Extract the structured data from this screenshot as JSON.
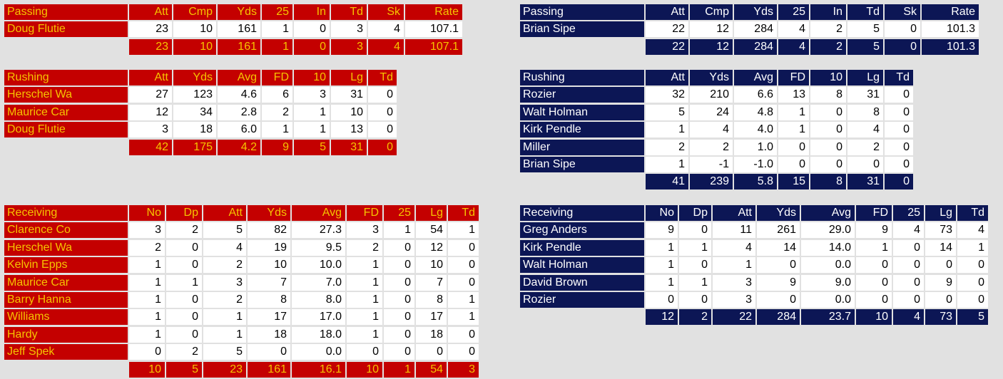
{
  "home": {
    "passing": {
      "title": "Passing",
      "columns": [
        "Att",
        "Cmp",
        "Yds",
        "25",
        "In",
        "Td",
        "Sk",
        "Rate"
      ],
      "rows": [
        {
          "name": "Doug Flutie",
          "values": [
            "23",
            "10",
            "161",
            "1",
            "0",
            "3",
            "4",
            "107.1"
          ]
        }
      ],
      "total": [
        "23",
        "10",
        "161",
        "1",
        "0",
        "3",
        "4",
        "107.1"
      ]
    },
    "rushing": {
      "title": "Rushing",
      "columns": [
        "Att",
        "Yds",
        "Avg",
        "FD",
        "10",
        "Lg",
        "Td"
      ],
      "rows": [
        {
          "name": "Herschel Wa",
          "values": [
            "27",
            "123",
            "4.6",
            "6",
            "3",
            "31",
            "0"
          ]
        },
        {
          "name": "Maurice Car",
          "values": [
            "12",
            "34",
            "2.8",
            "2",
            "1",
            "10",
            "0"
          ]
        },
        {
          "name": "Doug Flutie",
          "values": [
            "3",
            "18",
            "6.0",
            "1",
            "1",
            "13",
            "0"
          ]
        }
      ],
      "total": [
        "42",
        "175",
        "4.2",
        "9",
        "5",
        "31",
        "0"
      ]
    },
    "receiving": {
      "title": "Receiving",
      "columns": [
        "No",
        "Dp",
        "Att",
        "Yds",
        "Avg",
        "FD",
        "25",
        "Lg",
        "Td"
      ],
      "rows": [
        {
          "name": "Clarence Co",
          "values": [
            "3",
            "2",
            "5",
            "82",
            "27.3",
            "3",
            "1",
            "54",
            "1"
          ]
        },
        {
          "name": "Herschel Wa",
          "values": [
            "2",
            "0",
            "4",
            "19",
            "9.5",
            "2",
            "0",
            "12",
            "0"
          ]
        },
        {
          "name": "Kelvin Epps",
          "values": [
            "1",
            "0",
            "2",
            "10",
            "10.0",
            "1",
            "0",
            "10",
            "0"
          ]
        },
        {
          "name": "Maurice Car",
          "values": [
            "1",
            "1",
            "3",
            "7",
            "7.0",
            "1",
            "0",
            "7",
            "0"
          ]
        },
        {
          "name": "Barry Hanna",
          "values": [
            "1",
            "0",
            "2",
            "8",
            "8.0",
            "1",
            "0",
            "8",
            "1"
          ]
        },
        {
          "name": "Williams",
          "values": [
            "1",
            "0",
            "1",
            "17",
            "17.0",
            "1",
            "0",
            "17",
            "1"
          ]
        },
        {
          "name": "Hardy",
          "values": [
            "1",
            "0",
            "1",
            "18",
            "18.0",
            "1",
            "0",
            "18",
            "0"
          ]
        },
        {
          "name": "Jeff Spek",
          "values": [
            "0",
            "2",
            "5",
            "0",
            "0.0",
            "0",
            "0",
            "0",
            "0"
          ]
        }
      ],
      "total": [
        "10",
        "5",
        "23",
        "161",
        "16.1",
        "10",
        "1",
        "54",
        "3"
      ]
    }
  },
  "away": {
    "passing": {
      "title": "Passing",
      "columns": [
        "Att",
        "Cmp",
        "Yds",
        "25",
        "In",
        "Td",
        "Sk",
        "Rate"
      ],
      "rows": [
        {
          "name": "Brian Sipe",
          "values": [
            "22",
            "12",
            "284",
            "4",
            "2",
            "5",
            "0",
            "101.3"
          ]
        }
      ],
      "total": [
        "22",
        "12",
        "284",
        "4",
        "2",
        "5",
        "0",
        "101.3"
      ]
    },
    "rushing": {
      "title": "Rushing",
      "columns": [
        "Att",
        "Yds",
        "Avg",
        "FD",
        "10",
        "Lg",
        "Td"
      ],
      "rows": [
        {
          "name": "Rozier",
          "values": [
            "32",
            "210",
            "6.6",
            "13",
            "8",
            "31",
            "0"
          ]
        },
        {
          "name": "Walt Holman",
          "values": [
            "5",
            "24",
            "4.8",
            "1",
            "0",
            "8",
            "0"
          ]
        },
        {
          "name": "Kirk Pendle",
          "values": [
            "1",
            "4",
            "4.0",
            "1",
            "0",
            "4",
            "0"
          ]
        },
        {
          "name": "Miller",
          "values": [
            "2",
            "2",
            "1.0",
            "0",
            "0",
            "2",
            "0"
          ]
        },
        {
          "name": "Brian Sipe",
          "values": [
            "1",
            "-1",
            "-1.0",
            "0",
            "0",
            "0",
            "0"
          ]
        }
      ],
      "total": [
        "41",
        "239",
        "5.8",
        "15",
        "8",
        "31",
        "0"
      ]
    },
    "receiving": {
      "title": "Receiving",
      "columns": [
        "No",
        "Dp",
        "Att",
        "Yds",
        "Avg",
        "FD",
        "25",
        "Lg",
        "Td"
      ],
      "rows": [
        {
          "name": "Greg Anders",
          "values": [
            "9",
            "0",
            "11",
            "261",
            "29.0",
            "9",
            "4",
            "73",
            "4"
          ]
        },
        {
          "name": "Kirk Pendle",
          "values": [
            "1",
            "1",
            "4",
            "14",
            "14.0",
            "1",
            "0",
            "14",
            "1"
          ]
        },
        {
          "name": "Walt Holman",
          "values": [
            "1",
            "0",
            "1",
            "0",
            "0.0",
            "0",
            "0",
            "0",
            "0"
          ]
        },
        {
          "name": "David Brown",
          "values": [
            "1",
            "1",
            "3",
            "9",
            "9.0",
            "0",
            "0",
            "9",
            "0"
          ]
        },
        {
          "name": "Rozier",
          "values": [
            "0",
            "0",
            "3",
            "0",
            "0.0",
            "0",
            "0",
            "0",
            "0"
          ]
        }
      ],
      "total": [
        "12",
        "2",
        "22",
        "284",
        "23.7",
        "10",
        "4",
        "73",
        "5"
      ]
    }
  },
  "colors": {
    "home_header_bg": "#c40000",
    "home_header_text": "#f5c400",
    "away_header_bg": "#0c1655",
    "away_header_text": "#ffffff",
    "cell_bg": "#ffffff",
    "page_bg": "#e1e1e1"
  }
}
